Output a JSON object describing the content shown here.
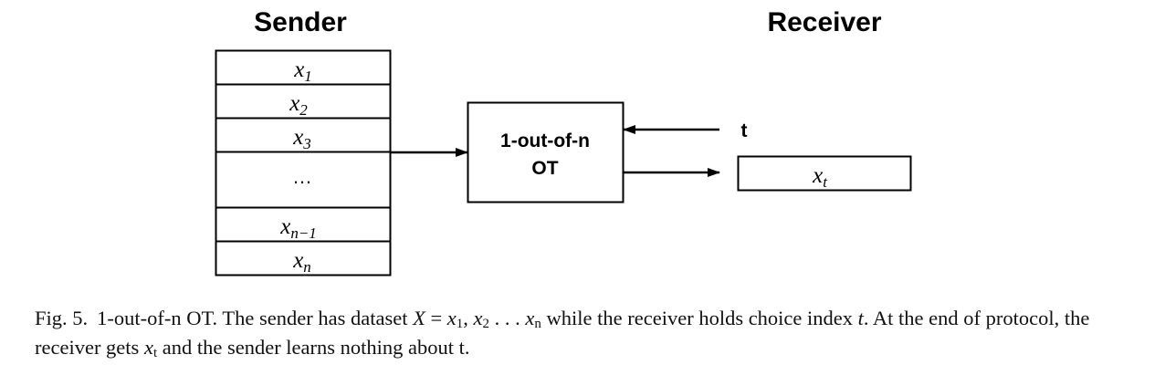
{
  "sender": {
    "heading": "Sender",
    "cells": [
      {
        "base": "x",
        "sub": "1"
      },
      {
        "base": "x",
        "sub": "2"
      },
      {
        "base": "x",
        "sub": "3"
      },
      {
        "ellipsis": "…"
      },
      {
        "base": "x",
        "sub": "n−1"
      },
      {
        "base": "x",
        "sub": "n"
      }
    ]
  },
  "receiver": {
    "heading": "Receiver",
    "input_label": "t",
    "output": {
      "base": "x",
      "sub": "t"
    }
  },
  "ot_box": {
    "line1": "1-out-of-n",
    "line2": "OT"
  },
  "caption": {
    "number": "Fig. 5.",
    "t1": "1-out-of-n OT. The sender has dataset ",
    "math1": "X",
    "t2": " = ",
    "math2_a": "x",
    "math2_a_sub": "1",
    "t3": ", ",
    "math2_b": "x",
    "math2_b_sub": "2",
    "t4": " . . . ",
    "math2_c": "x",
    "math2_c_sub": "n",
    "t5": " while the receiver holds choice index ",
    "math3": "t",
    "t6": ". At the end of protocol, the receiver gets ",
    "math4": "x",
    "math4_sub": "t",
    "t7": " and the sender learns nothing about t."
  }
}
